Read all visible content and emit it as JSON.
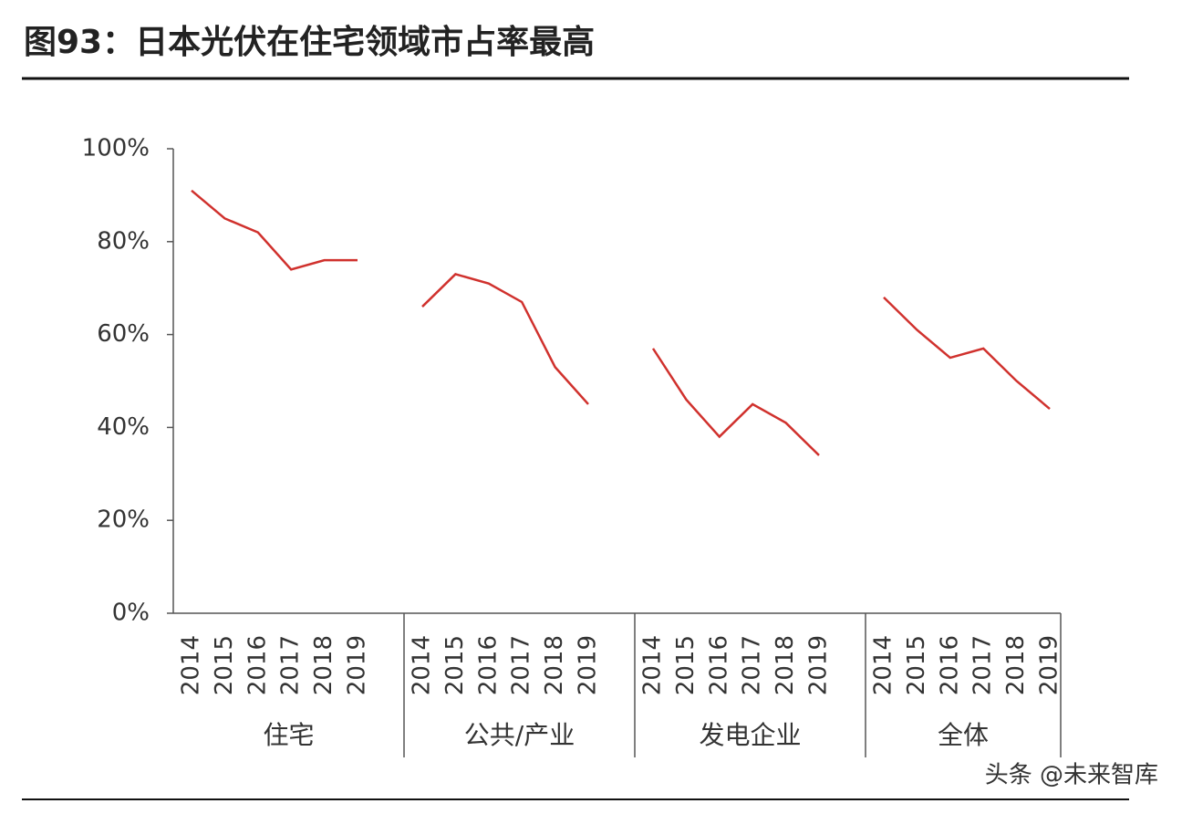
{
  "chart_data": {
    "type": "line",
    "title": "图93：日本光伏在住宅领域市占率最高",
    "categories": [
      "2014",
      "2015",
      "2016",
      "2017",
      "2018",
      "2019"
    ],
    "series": [
      {
        "name": "住宅",
        "color": "#d0312d",
        "values": [
          91,
          85,
          82,
          74,
          76,
          76
        ]
      },
      {
        "name": "公共/产业",
        "color": "#d0312d",
        "values": [
          66,
          73,
          71,
          67,
          53,
          45
        ]
      },
      {
        "name": "发电企业",
        "color": "#d0312d",
        "values": [
          57,
          46,
          38,
          45,
          41,
          34
        ]
      },
      {
        "name": "全体",
        "color": "#d0312d",
        "values": [
          68,
          61,
          55,
          57,
          50,
          44
        ]
      }
    ],
    "ylim": [
      0,
      100
    ],
    "yticks": [
      {
        "value": 0,
        "label": "0%"
      },
      {
        "value": 20,
        "label": "20%"
      },
      {
        "value": 40,
        "label": "40%"
      },
      {
        "value": 60,
        "label": "60%"
      },
      {
        "value": 80,
        "label": "80%"
      },
      {
        "value": 100,
        "label": "100%"
      }
    ]
  },
  "watermark": "头条 @未来智库"
}
